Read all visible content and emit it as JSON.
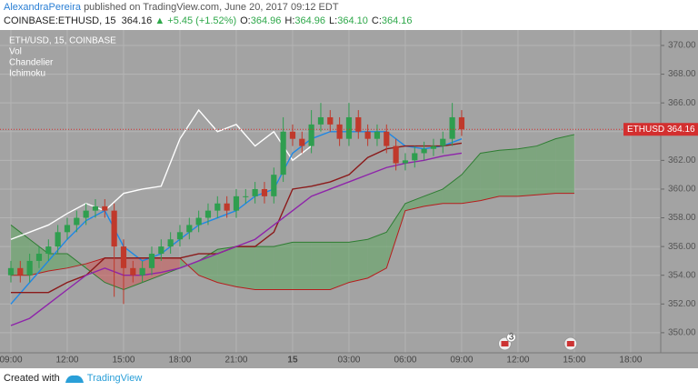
{
  "header": {
    "publisher": "AlexandraPereira",
    "published": "published on TradingView.com, June 20, 2017 09:12 EDT",
    "symbol": "COINBASE:ETHUSD, 15",
    "last": "364.16",
    "change": "▲ +5.45 (+1.52%)",
    "ohlc": [
      {
        "label": "O:",
        "value": "364.96"
      },
      {
        "label": "H:",
        "value": "364.96"
      },
      {
        "label": "L:",
        "value": "364.10"
      },
      {
        "label": "C:",
        "value": "364.16"
      }
    ]
  },
  "footer": {
    "created": "Created with",
    "brand": "TradingView"
  },
  "chart_data": {
    "type": "candlestick",
    "legend_labels": [
      "ETH/USD, 15, COINBASE",
      "Vol",
      "Chandelier",
      "Ichimoku"
    ],
    "up_color": "#2f9e4f",
    "down_color": "#c0392b",
    "x": [
      0,
      0.5,
      1,
      1.5,
      2,
      2.5,
      3,
      3.5,
      4,
      4.5,
      5,
      5.5,
      6,
      6.5,
      7,
      7.5,
      8,
      8.5,
      9,
      9.5,
      10,
      10.5,
      11,
      11.5,
      12,
      12.5,
      13,
      13.5,
      14,
      14.5,
      15,
      15.5,
      16,
      16.5,
      17,
      17.5,
      18,
      18.5,
      19,
      19.5,
      20,
      20.5,
      21,
      21.5,
      22,
      22.5,
      23,
      23.5,
      24
    ],
    "open": [
      354,
      354.5,
      354,
      355,
      355.5,
      356,
      357,
      357.5,
      358,
      358.5,
      358.8,
      358.5,
      356,
      354.5,
      354,
      354.5,
      355.5,
      356,
      356.5,
      357,
      357.5,
      358,
      358.5,
      359,
      358.5,
      359.5,
      359.5,
      360,
      359.5,
      361,
      364,
      363.5,
      363,
      364.5,
      365,
      364.5,
      363.5,
      365,
      364,
      363.5,
      364,
      363,
      361.8,
      362,
      362.5,
      362.8,
      363,
      363.5,
      365
    ],
    "high": [
      355,
      355,
      355.5,
      356,
      356.5,
      357.5,
      358,
      358.5,
      359,
      359.3,
      359.3,
      359,
      356.5,
      355,
      355,
      356,
      356.5,
      357,
      357.5,
      358,
      358.5,
      359,
      359.5,
      359.5,
      360,
      360,
      360.5,
      360.5,
      361.5,
      365,
      364.5,
      364,
      365.5,
      366,
      365.5,
      365,
      366,
      365.5,
      364.5,
      364.5,
      364.5,
      363.5,
      362.5,
      363,
      363.3,
      363.5,
      364,
      366,
      365.5
    ],
    "low": [
      353.5,
      353.5,
      353.5,
      354.5,
      355,
      355.5,
      356.5,
      357,
      357.5,
      358,
      358,
      352.5,
      352,
      353.5,
      353.5,
      354,
      355,
      355.5,
      356,
      356.5,
      357,
      357.5,
      358,
      358,
      358,
      359,
      359,
      359,
      359,
      360.5,
      363,
      362.5,
      362.5,
      364,
      364,
      363,
      363,
      363.5,
      363,
      363,
      362.5,
      361.3,
      361.3,
      361.5,
      362,
      362.3,
      362.5,
      363,
      363.7
    ],
    "close": [
      354.5,
      354,
      355,
      355.5,
      356,
      357,
      357.5,
      358,
      358.5,
      358.8,
      358.5,
      356,
      354.5,
      354,
      354.5,
      355.5,
      356,
      356.5,
      357,
      357.5,
      358,
      358.5,
      359,
      358.5,
      359.5,
      359.5,
      360,
      359.5,
      361,
      364,
      363.5,
      363,
      364.5,
      365,
      364.5,
      363.5,
      365,
      364,
      363.5,
      364,
      363,
      361.8,
      362,
      362.5,
      362.8,
      363,
      363.5,
      365,
      364.16
    ],
    "lines": [
      {
        "color": "#ffffff",
        "x": [
          0,
          1,
          2,
          3,
          4,
          5,
          6,
          7,
          8,
          9,
          10,
          11,
          12,
          13,
          14,
          15,
          16
        ],
        "values": [
          356.5,
          357,
          357.5,
          358.3,
          359,
          358.5,
          359.7,
          360,
          360.2,
          363.5,
          365.5,
          364,
          364.5,
          363,
          364,
          362,
          363
        ]
      },
      {
        "color": "#1e88e5",
        "x": [
          0,
          1,
          2,
          3,
          4,
          5,
          6,
          7,
          8,
          9,
          10,
          11,
          12,
          13,
          14,
          15,
          16,
          17,
          18,
          19,
          20,
          21,
          22,
          23,
          24
        ],
        "values": [
          352,
          353.5,
          355,
          356.5,
          357.8,
          358.5,
          356,
          355,
          355.5,
          356.5,
          357.5,
          358,
          358.5,
          359.5,
          360,
          362.5,
          363.5,
          364,
          364,
          364,
          364,
          363,
          362.8,
          363,
          363.5
        ]
      },
      {
        "color": "#8b1a1a",
        "x": [
          0,
          1,
          2,
          3,
          4,
          5,
          6,
          7,
          8,
          9,
          10,
          11,
          12,
          13,
          14,
          15,
          16,
          17,
          18,
          19,
          20,
          21,
          22,
          23,
          24
        ],
        "values": [
          352.8,
          352.8,
          352.8,
          353.5,
          354,
          355.2,
          355.2,
          355.2,
          355.2,
          355.2,
          355.5,
          355.5,
          356,
          356,
          357,
          360,
          360.2,
          360.5,
          361,
          362.2,
          362.8,
          363,
          363,
          363,
          363.2
        ]
      },
      {
        "color": "#8e24aa",
        "x": [
          0,
          1,
          2,
          3,
          4,
          5,
          6,
          7,
          8,
          9,
          10,
          11,
          12,
          13,
          14,
          15,
          16,
          17,
          18,
          19,
          20,
          21,
          22,
          23,
          24
        ],
        "values": [
          350.5,
          351,
          352,
          353,
          354,
          354.5,
          354,
          354,
          354.2,
          354.5,
          355,
          355.5,
          356,
          356.5,
          357.5,
          358.5,
          359.5,
          360,
          360.5,
          361,
          361.5,
          361.8,
          362,
          362.3,
          362.5
        ]
      }
    ],
    "cloud": {
      "up_color": "#5fa860",
      "down_color": "#d05a5a",
      "line_a_color": "#2e7d32",
      "line_b_color": "#b71c1c",
      "x": [
        0,
        1,
        2,
        3,
        4,
        5,
        6,
        7,
        8,
        9,
        10,
        11,
        12,
        13,
        14,
        15,
        16,
        17,
        18,
        19,
        20,
        21,
        22,
        23,
        24,
        25,
        26,
        27,
        28,
        29,
        30
      ],
      "span_a": [
        357.5,
        356.5,
        355.5,
        355.5,
        354.5,
        353.5,
        353,
        353.5,
        354,
        354.5,
        355,
        355.8,
        356,
        356,
        356,
        356.3,
        356.3,
        356.3,
        356.3,
        356.5,
        357,
        359,
        359.5,
        360,
        361,
        362.5,
        362.7,
        362.8,
        363,
        363.5,
        363.8
      ],
      "span_b": [
        354,
        354,
        354.3,
        354.5,
        354.8,
        355.2,
        355.2,
        355.2,
        355.2,
        355.2,
        354,
        353.5,
        353.2,
        353,
        353,
        353,
        353,
        353,
        353.5,
        353.8,
        354.5,
        358.5,
        358.8,
        359,
        359,
        359.2,
        359.5,
        359.5,
        359.6,
        359.7,
        359.7
      ]
    },
    "last_label": "ETHUSD",
    "last_price": 364.16,
    "last_color": "#d32f2f",
    "events": [
      {
        "x": 26.3,
        "label": "3"
      },
      {
        "x": 29.8
      }
    ],
    "xlim": [
      -0.58,
      34.6
    ],
    "xticks": [
      {
        "value": 0,
        "label": "09:00"
      },
      {
        "value": 3,
        "label": "12:00"
      },
      {
        "value": 6,
        "label": "15:00"
      },
      {
        "value": 9,
        "label": "18:00"
      },
      {
        "value": 12,
        "label": "21:00"
      },
      15,
      {
        "value": 18,
        "label": "03:00"
      },
      {
        "value": 21,
        "label": "06:00"
      },
      {
        "value": 24,
        "label": "09:00"
      },
      {
        "value": 27,
        "label": "12:00"
      },
      {
        "value": 30,
        "label": "15:00"
      },
      {
        "value": 33,
        "label": "18:00"
      }
    ],
    "ylim": [
      348.6,
      370.95
    ],
    "yticks": [
      {
        "value": 350,
        "label": "350.00"
      },
      {
        "value": 352,
        "label": "352.00"
      },
      {
        "value": 354,
        "label": "354.00"
      },
      {
        "value": 356,
        "label": "356.00"
      },
      {
        "value": 358,
        "label": "358.00"
      },
      {
        "value": 360,
        "label": "360.00"
      },
      {
        "value": 362,
        "label": "362.00"
      },
      {
        "value": 364,
        "label": "364.00"
      },
      {
        "value": 366,
        "label": "366.00"
      },
      {
        "value": 368,
        "label": "368.00"
      },
      {
        "value": 370,
        "label": "370.00"
      }
    ],
    "grid": true
  }
}
